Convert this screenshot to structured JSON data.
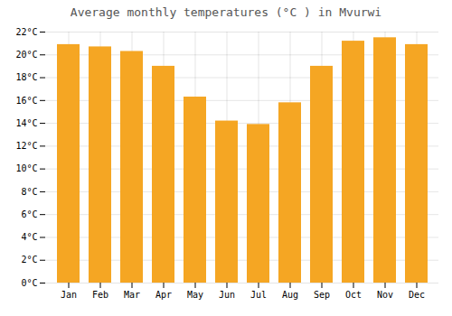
{
  "chart_data": {
    "type": "bar",
    "title": "Average monthly temperatures (°C ) in Mvurwi",
    "categories": [
      "Jan",
      "Feb",
      "Mar",
      "Apr",
      "May",
      "Jun",
      "Jul",
      "Aug",
      "Sep",
      "Oct",
      "Nov",
      "Dec"
    ],
    "values": [
      20.9,
      20.7,
      20.3,
      19.0,
      16.3,
      14.2,
      13.9,
      15.8,
      19.0,
      21.2,
      21.5,
      20.9
    ],
    "color": "#F5A623",
    "ylim": [
      0,
      22
    ],
    "yticks": [
      {
        "value": 0,
        "label": "0°C"
      },
      {
        "value": 2,
        "label": "2°C"
      },
      {
        "value": 4,
        "label": "4°C"
      },
      {
        "value": 6,
        "label": "6°C"
      },
      {
        "value": 8,
        "label": "8°C"
      },
      {
        "value": 10,
        "label": "10°C"
      },
      {
        "value": 12,
        "label": "12°C"
      },
      {
        "value": 14,
        "label": "14°C"
      },
      {
        "value": 16,
        "label": "16°C"
      },
      {
        "value": 18,
        "label": "18°C"
      },
      {
        "value": 20,
        "label": "20°C"
      },
      {
        "value": 22,
        "label": "22°C"
      }
    ],
    "grid": true
  }
}
